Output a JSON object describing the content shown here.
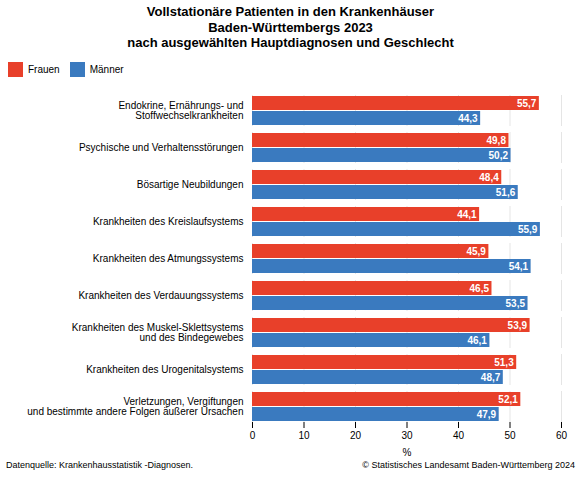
{
  "chart_data": {
    "type": "bar",
    "orientation": "horizontal",
    "title": "Vollstationäre Patienten in den Krankenhäuser\nBaden-Württembergs 2023\nnach ausgewählten Hauptdiagnosen und Geschlecht",
    "categories": [
      "Endokrine, Ernährungs- und\nStoffwechselkrankheiten",
      "Psychische und Verhaltensstörungen",
      "Bösartige Neubildungen",
      "Krankheiten des Kreislaufsystems",
      "Krankheiten des Atmungssystems",
      "Krankheiten des Verdauungssystems",
      "Krankheiten des Muskel-Sklettsystems\nund des Bindegewebes",
      "Krankheiten des Urogenitalsystems",
      "Verletzungen, Vergiftungen\nund bestimmte andere Folgen äußerer Ursachen"
    ],
    "series": [
      {
        "name": "Frauen",
        "color": "#e8402a",
        "values": [
          55.7,
          49.8,
          48.4,
          44.1,
          45.9,
          46.5,
          53.9,
          51.3,
          52.1
        ],
        "value_labels": [
          "55,7",
          "49,8",
          "48,4",
          "44,1",
          "45,9",
          "46,5",
          "53,9",
          "51,3",
          "52,1"
        ]
      },
      {
        "name": "Männer",
        "color": "#3a7abf",
        "values": [
          44.3,
          50.2,
          51.6,
          55.9,
          54.1,
          53.5,
          46.1,
          48.7,
          47.9
        ],
        "value_labels": [
          "44,3",
          "50,2",
          "51,6",
          "55,9",
          "54,1",
          "53,5",
          "46,1",
          "48,7",
          "47,9"
        ]
      }
    ],
    "xlabel": "%",
    "xlim": [
      0,
      60
    ],
    "xticks": [
      0,
      10,
      20,
      30,
      40,
      50,
      60
    ],
    "grid": true,
    "legend": "top-left",
    "data_labels": true,
    "annotations": [
      "Datenquelle: Krankenhausstatistik -Diagnosen.",
      "© Statistisches Landesamt Baden-Württemberg 2024"
    ]
  }
}
